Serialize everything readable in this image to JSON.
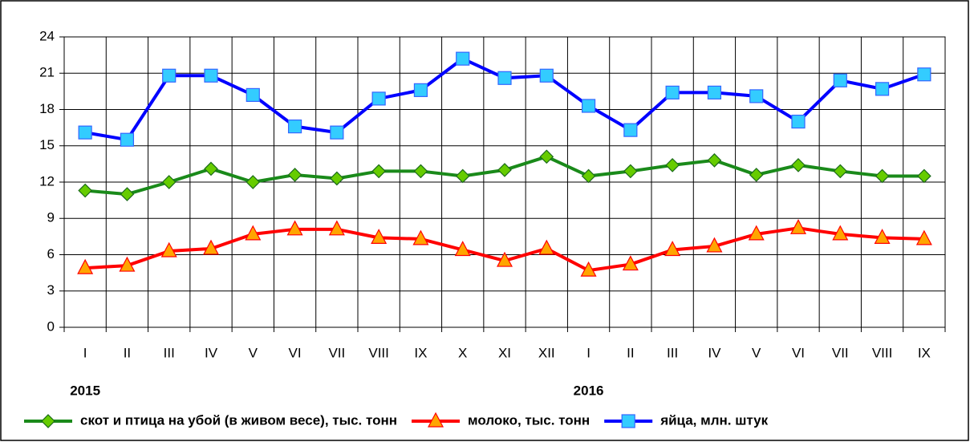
{
  "chart_data": {
    "type": "line",
    "categories": [
      "I",
      "II",
      "III",
      "IV",
      "V",
      "VI",
      "VII",
      "VIII",
      "IX",
      "X",
      "XI",
      "XII",
      "I",
      "II",
      "III",
      "IV",
      "V",
      "VI",
      "VII",
      "VIII",
      "IX"
    ],
    "groups": [
      {
        "name": "2015",
        "count": 12
      },
      {
        "name": "2016",
        "count": 9
      }
    ],
    "series": [
      {
        "name": "скот и птица на убой (в живом весе), тыс. тонн",
        "color": "#1a8a1a",
        "marker": "diamond",
        "marker_color": "#66cc00",
        "values": [
          11.3,
          11.0,
          12.0,
          13.1,
          12.0,
          12.6,
          12.3,
          12.9,
          12.9,
          12.5,
          13.0,
          14.1,
          12.5,
          12.9,
          13.4,
          13.8,
          12.6,
          13.4,
          12.9,
          12.5,
          12.5
        ]
      },
      {
        "name": "молоко, тыс. тонн",
        "color": "#ff0000",
        "marker": "triangle",
        "marker_color": "#ffa500",
        "values": [
          4.9,
          5.1,
          6.3,
          6.5,
          7.7,
          8.1,
          8.1,
          7.4,
          7.3,
          6.4,
          5.5,
          6.5,
          4.7,
          5.2,
          6.4,
          6.7,
          7.7,
          8.2,
          7.7,
          7.4,
          7.3
        ]
      },
      {
        "name": "яйца, млн. штук",
        "color": "#0000ff",
        "marker": "square",
        "marker_color": "#33ccff",
        "values": [
          16.1,
          15.5,
          20.8,
          20.8,
          19.2,
          16.6,
          16.1,
          18.9,
          19.6,
          22.2,
          20.6,
          20.8,
          18.3,
          16.3,
          19.4,
          19.4,
          19.1,
          17.0,
          20.4,
          19.7,
          20.9
        ]
      }
    ],
    "ylim": [
      0,
      24
    ],
    "yticks": [
      0,
      3,
      6,
      9,
      12,
      15,
      18,
      21,
      24
    ],
    "grid": true,
    "legend": "bottom"
  }
}
